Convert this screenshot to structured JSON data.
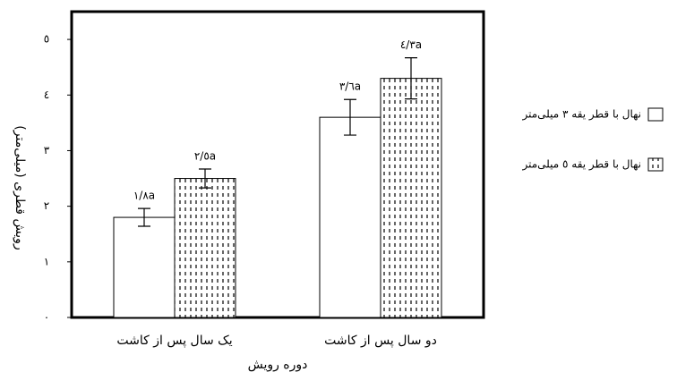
{
  "chart_data": {
    "type": "bar",
    "x_label": "دوره رویش",
    "y_label": "رویش قطری (میلی‌متر)",
    "categories": [
      "یک سال پس از کاشت",
      "دو سال پس از کاشت"
    ],
    "series": [
      {
        "name": "نهال با قطر یقه ٣ میلی‌متر",
        "color": "#ffffff",
        "values": [
          1.8,
          3.6
        ],
        "errors": [
          0.16,
          0.32
        ],
        "value_labels": [
          "١/٨a",
          "٣/٦a"
        ]
      },
      {
        "name": "نهال با قطر یقه ٥ میلی‌متر",
        "color": "#ffffff",
        "pattern": "dashed",
        "values": [
          2.5,
          4.3
        ],
        "errors": [
          0.17,
          0.37
        ],
        "value_labels": [
          "٢/٥a",
          "٤/٣a"
        ]
      }
    ],
    "ylim": [
      0,
      5.5
    ],
    "yticks": [
      {
        "value": 0,
        "label": "٠"
      },
      {
        "value": 1,
        "label": "١"
      },
      {
        "value": 2,
        "label": "٢"
      },
      {
        "value": 3,
        "label": "٣"
      },
      {
        "value": 4,
        "label": "٤"
      },
      {
        "value": 5,
        "label": "٥"
      }
    ],
    "grid": false
  }
}
